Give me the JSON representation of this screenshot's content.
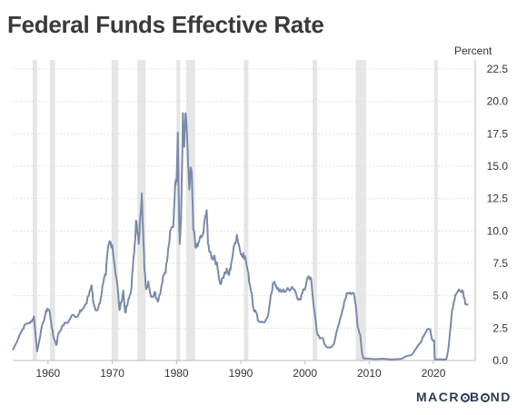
{
  "chart_data": {
    "type": "line",
    "title": "Federal Funds Effective Rate",
    "ylabel": "Percent",
    "xlim": [
      1954.5,
      2026.5
    ],
    "ylim": [
      0,
      22.5
    ],
    "y_ticks": [
      0.0,
      2.5,
      5.0,
      7.5,
      10.0,
      12.5,
      15.0,
      17.5,
      20.0,
      22.5
    ],
    "x_ticks": [
      1960,
      1970,
      1980,
      1990,
      2000,
      2010,
      2020
    ],
    "y_axis_side": "right",
    "grid": "horizontal",
    "line_color": "#7a8aa8",
    "shade_color": "#e6e6e6",
    "recessions": [
      [
        1957.6,
        1958.3
      ],
      [
        1960.3,
        1961.1
      ],
      [
        1969.9,
        1970.9
      ],
      [
        1973.9,
        1975.2
      ],
      [
        1980.0,
        1980.5
      ],
      [
        1981.5,
        1982.9
      ],
      [
        1990.5,
        1991.2
      ],
      [
        2001.2,
        2001.9
      ],
      [
        2007.9,
        2009.5
      ],
      [
        2020.1,
        2020.3
      ]
    ],
    "series": [
      {
        "values": [
          [
            1954.5,
            0.8
          ],
          [
            1955.0,
            1.3
          ],
          [
            1955.5,
            1.9
          ],
          [
            1956.0,
            2.4
          ],
          [
            1956.5,
            2.8
          ],
          [
            1957.0,
            2.9
          ],
          [
            1957.5,
            3.0
          ],
          [
            1957.8,
            3.4
          ],
          [
            1958.0,
            2.3
          ],
          [
            1958.3,
            0.7
          ],
          [
            1958.5,
            1.2
          ],
          [
            1958.9,
            2.3
          ],
          [
            1959.3,
            3.0
          ],
          [
            1959.6,
            3.6
          ],
          [
            1959.9,
            4.0
          ],
          [
            1960.2,
            3.9
          ],
          [
            1960.5,
            2.9
          ],
          [
            1960.8,
            1.9
          ],
          [
            1961.0,
            1.6
          ],
          [
            1961.3,
            1.2
          ],
          [
            1961.6,
            2.1
          ],
          [
            1961.9,
            2.3
          ],
          [
            1962.3,
            2.7
          ],
          [
            1962.7,
            2.9
          ],
          [
            1963.2,
            3.0
          ],
          [
            1963.6,
            3.4
          ],
          [
            1964.0,
            3.5
          ],
          [
            1964.6,
            3.4
          ],
          [
            1965.0,
            3.9
          ],
          [
            1965.6,
            4.1
          ],
          [
            1966.0,
            4.4
          ],
          [
            1966.5,
            5.4
          ],
          [
            1966.8,
            5.8
          ],
          [
            1967.0,
            4.6
          ],
          [
            1967.4,
            3.9
          ],
          [
            1967.8,
            4.0
          ],
          [
            1968.2,
            4.8
          ],
          [
            1968.6,
            6.0
          ],
          [
            1969.0,
            6.6
          ],
          [
            1969.3,
            8.5
          ],
          [
            1969.6,
            9.2
          ],
          [
            1970.0,
            8.9
          ],
          [
            1970.4,
            7.2
          ],
          [
            1970.8,
            5.9
          ],
          [
            1971.1,
            3.9
          ],
          [
            1971.4,
            4.5
          ],
          [
            1971.7,
            5.4
          ],
          [
            1972.0,
            3.7
          ],
          [
            1972.3,
            4.2
          ],
          [
            1972.6,
            4.8
          ],
          [
            1972.9,
            5.3
          ],
          [
            1973.2,
            7.1
          ],
          [
            1973.5,
            9.0
          ],
          [
            1973.7,
            10.8
          ],
          [
            1973.9,
            10.0
          ],
          [
            1974.1,
            9.0
          ],
          [
            1974.4,
            11.3
          ],
          [
            1974.6,
            12.9
          ],
          [
            1974.8,
            10.0
          ],
          [
            1975.0,
            7.1
          ],
          [
            1975.3,
            5.5
          ],
          [
            1975.6,
            6.1
          ],
          [
            1975.9,
            5.2
          ],
          [
            1976.3,
            4.9
          ],
          [
            1976.6,
            5.3
          ],
          [
            1976.9,
            4.8
          ],
          [
            1977.2,
            4.7
          ],
          [
            1977.6,
            5.6
          ],
          [
            1977.9,
            6.5
          ],
          [
            1978.2,
            6.8
          ],
          [
            1978.5,
            7.6
          ],
          [
            1978.8,
            8.9
          ],
          [
            1979.1,
            10.1
          ],
          [
            1979.5,
            10.3
          ],
          [
            1979.8,
            13.8
          ],
          [
            1980.0,
            13.8
          ],
          [
            1980.2,
            17.6
          ],
          [
            1980.4,
            11.0
          ],
          [
            1980.5,
            9.0
          ],
          [
            1980.7,
            10.9
          ],
          [
            1980.9,
            15.8
          ],
          [
            1981.0,
            19.1
          ],
          [
            1981.2,
            16.5
          ],
          [
            1981.4,
            19.1
          ],
          [
            1981.6,
            17.8
          ],
          [
            1981.8,
            15.1
          ],
          [
            1982.0,
            13.2
          ],
          [
            1982.2,
            14.9
          ],
          [
            1982.4,
            14.1
          ],
          [
            1982.6,
            10.1
          ],
          [
            1982.8,
            9.7
          ],
          [
            1983.0,
            8.7
          ],
          [
            1983.3,
            8.8
          ],
          [
            1983.6,
            9.4
          ],
          [
            1983.9,
            9.5
          ],
          [
            1984.2,
            9.9
          ],
          [
            1984.5,
            11.2
          ],
          [
            1984.7,
            11.6
          ],
          [
            1984.9,
            9.0
          ],
          [
            1985.2,
            8.4
          ],
          [
            1985.6,
            7.9
          ],
          [
            1985.9,
            8.1
          ],
          [
            1986.2,
            7.5
          ],
          [
            1986.5,
            6.9
          ],
          [
            1986.8,
            5.9
          ],
          [
            1987.2,
            6.4
          ],
          [
            1987.6,
            6.8
          ],
          [
            1987.9,
            6.9
          ],
          [
            1988.2,
            6.6
          ],
          [
            1988.5,
            7.5
          ],
          [
            1988.8,
            8.3
          ],
          [
            1989.1,
            9.1
          ],
          [
            1989.4,
            9.7
          ],
          [
            1989.7,
            9.0
          ],
          [
            1990.0,
            8.2
          ],
          [
            1990.4,
            8.3
          ],
          [
            1990.8,
            7.7
          ],
          [
            1991.1,
            6.9
          ],
          [
            1991.4,
            5.9
          ],
          [
            1991.7,
            5.2
          ],
          [
            1992.0,
            4.0
          ],
          [
            1992.4,
            3.7
          ],
          [
            1992.8,
            3.0
          ],
          [
            1993.3,
            3.0
          ],
          [
            1993.8,
            3.0
          ],
          [
            1994.2,
            3.4
          ],
          [
            1994.5,
            4.3
          ],
          [
            1994.8,
            5.2
          ],
          [
            1995.1,
            6.0
          ],
          [
            1995.5,
            5.8
          ],
          [
            1995.8,
            5.6
          ],
          [
            1996.3,
            5.3
          ],
          [
            1996.8,
            5.3
          ],
          [
            1997.3,
            5.6
          ],
          [
            1997.8,
            5.5
          ],
          [
            1998.3,
            5.5
          ],
          [
            1998.8,
            4.8
          ],
          [
            1999.2,
            4.7
          ],
          [
            1999.6,
            5.2
          ],
          [
            2000.0,
            5.5
          ],
          [
            2000.3,
            6.3
          ],
          [
            2000.6,
            6.5
          ],
          [
            2000.9,
            6.4
          ],
          [
            2001.1,
            5.5
          ],
          [
            2001.4,
            4.0
          ],
          [
            2001.7,
            3.0
          ],
          [
            2001.9,
            2.1
          ],
          [
            2002.3,
            1.7
          ],
          [
            2002.8,
            1.7
          ],
          [
            2003.0,
            1.3
          ],
          [
            2003.5,
            1.0
          ],
          [
            2004.0,
            1.0
          ],
          [
            2004.5,
            1.3
          ],
          [
            2004.9,
            2.2
          ],
          [
            2005.3,
            2.8
          ],
          [
            2005.7,
            3.6
          ],
          [
            2006.1,
            4.5
          ],
          [
            2006.5,
            5.2
          ],
          [
            2007.0,
            5.25
          ],
          [
            2007.6,
            5.2
          ],
          [
            2007.9,
            4.3
          ],
          [
            2008.2,
            2.6
          ],
          [
            2008.6,
            2.0
          ],
          [
            2008.9,
            0.5
          ],
          [
            2009.1,
            0.16
          ],
          [
            2010.0,
            0.15
          ],
          [
            2011.0,
            0.1
          ],
          [
            2012.0,
            0.14
          ],
          [
            2013.0,
            0.1
          ],
          [
            2014.0,
            0.09
          ],
          [
            2015.0,
            0.12
          ],
          [
            2015.9,
            0.35
          ],
          [
            2016.5,
            0.4
          ],
          [
            2017.0,
            0.7
          ],
          [
            2017.5,
            1.1
          ],
          [
            2018.0,
            1.4
          ],
          [
            2018.5,
            1.9
          ],
          [
            2019.0,
            2.4
          ],
          [
            2019.5,
            2.4
          ],
          [
            2019.8,
            1.6
          ],
          [
            2020.1,
            1.55
          ],
          [
            2020.2,
            0.1
          ],
          [
            2020.5,
            0.09
          ],
          [
            2021.5,
            0.08
          ],
          [
            2022.0,
            0.1
          ],
          [
            2022.3,
            0.8
          ],
          [
            2022.6,
            2.3
          ],
          [
            2022.9,
            3.9
          ],
          [
            2023.2,
            4.6
          ],
          [
            2023.5,
            5.1
          ],
          [
            2023.8,
            5.33
          ],
          [
            2024.2,
            5.33
          ],
          [
            2024.6,
            5.33
          ],
          [
            2024.8,
            4.8
          ],
          [
            2025.0,
            4.33
          ],
          [
            2025.4,
            4.33
          ]
        ]
      }
    ]
  },
  "logo": {
    "part1": "MACR",
    "part2": "B",
    "part3": "ND"
  }
}
